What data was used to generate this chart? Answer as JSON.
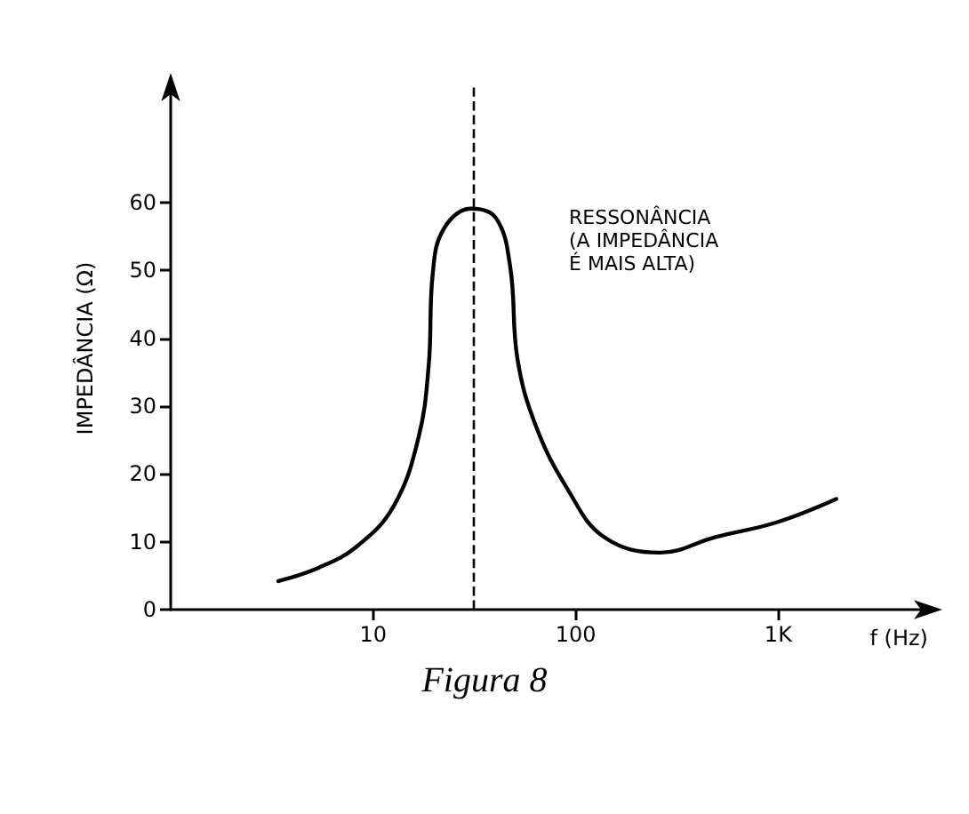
{
  "chart_data": {
    "type": "line",
    "title": "Figura 8",
    "xlabel": "f (Hz)",
    "ylabel": "IMPEDÂNCIA (Ω)",
    "annotations": [
      "RESSONÂNCIA\n(A IMPEDÂNCIA\nÉ MAIS ALTA)"
    ],
    "x": [
      3.4,
      5.4,
      8.3,
      12.6,
      16.7,
      18.8,
      19.7,
      22.2,
      30.4,
      40.4,
      47.5,
      51.6,
      63.7,
      90.6,
      138,
      261,
      491,
      993,
      1936
    ],
    "series": [
      {
        "color": "#000000",
        "values": [
          4.2,
          6.2,
          9.3,
          15.2,
          25.2,
          36,
          49.6,
          56,
          59.1,
          57.7,
          50.5,
          36.9,
          27,
          17.9,
          10.7,
          8.4,
          10.7,
          12.9,
          16.3
        ]
      }
    ],
    "log": "x",
    "xlim": [
      1,
      5500
    ],
    "xticks": [
      10,
      100,
      {
        "value": 1000,
        "label": "1K"
      }
    ],
    "ylim": [
      0,
      77
    ],
    "yticks": [
      0,
      10,
      20,
      30,
      40,
      50,
      60
    ],
    "ref_lines": [
      {
        "axis": "x",
        "value": 31,
        "line_style": "dashed",
        "color": "#000000"
      }
    ],
    "grid": false,
    "marker": "none",
    "line_style": "solid"
  }
}
